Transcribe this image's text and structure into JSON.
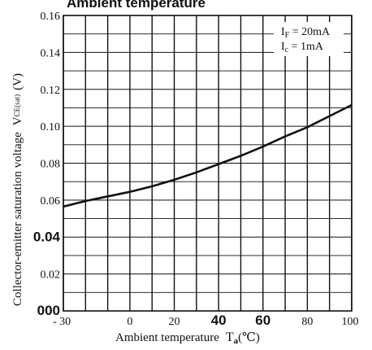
{
  "chart_data": {
    "type": "line",
    "title": "Ambient  temperature",
    "xlabel": "Ambient  temperature",
    "xlabel_symbol": "T",
    "xlabel_sub": "a",
    "xlabel_unit": "(℃)",
    "ylabel": "Collector-emitter  saturation  voltage",
    "ylabel_symbol": "V",
    "ylabel_sub": "CE(sat)",
    "ylabel_unit": "(V)",
    "xlim": [
      -30,
      100
    ],
    "ylim": [
      0,
      0.16
    ],
    "x_ticks": [
      {
        "value": -30,
        "label": "- 30",
        "bold": false
      },
      {
        "value": 0,
        "label": "0",
        "bold": false
      },
      {
        "value": 20,
        "label": "20",
        "bold": false
      },
      {
        "value": 40,
        "label": "40",
        "bold": true
      },
      {
        "value": 60,
        "label": "60",
        "bold": true
      },
      {
        "value": 80,
        "label": "80",
        "bold": false
      },
      {
        "value": 100,
        "label": "100",
        "bold": false
      }
    ],
    "y_ticks": [
      {
        "value": 0,
        "label": "000",
        "bold": true
      },
      {
        "value": 0.02,
        "label": "0.02",
        "bold": false
      },
      {
        "value": 0.04,
        "label": "0.04",
        "bold": true
      },
      {
        "value": 0.06,
        "label": "0.06",
        "bold": false
      },
      {
        "value": 0.08,
        "label": "0.08",
        "bold": false
      },
      {
        "value": 0.1,
        "label": "0.10",
        "bold": false
      },
      {
        "value": 0.12,
        "label": "0.12",
        "bold": false
      },
      {
        "value": 0.14,
        "label": "0.14",
        "bold": false
      },
      {
        "value": 0.16,
        "label": "0.16",
        "bold": false
      }
    ],
    "x_grid": [
      -30,
      -20,
      -10,
      0,
      10,
      20,
      30,
      40,
      50,
      60,
      70,
      80,
      90,
      100
    ],
    "y_grid": [
      0,
      0.01,
      0.02,
      0.03,
      0.04,
      0.05,
      0.06,
      0.07,
      0.08,
      0.09,
      0.1,
      0.11,
      0.12,
      0.13,
      0.14,
      0.15,
      0.16
    ],
    "grid": true,
    "legend_lines": [
      "I_F = 20mA",
      "I_c = 1mA"
    ],
    "series": [
      {
        "x": [
          -30,
          -20,
          -10,
          0,
          10,
          20,
          30,
          40,
          50,
          60,
          70,
          80,
          90,
          100
        ],
        "y": [
          0.0565,
          0.0595,
          0.062,
          0.0645,
          0.0675,
          0.071,
          0.075,
          0.0795,
          0.084,
          0.089,
          0.0945,
          0.0995,
          0.1055,
          0.1115
        ]
      }
    ]
  }
}
